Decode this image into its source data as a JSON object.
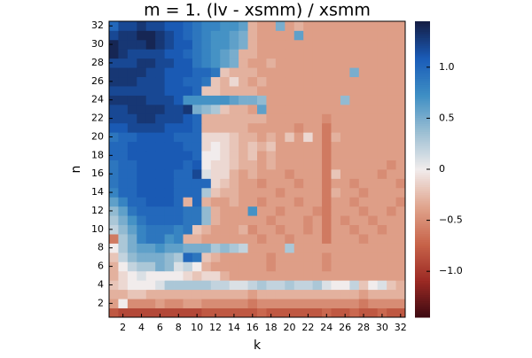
{
  "chart_data": {
    "type": "heatmap",
    "title": "m = 1. (lv - xsmm) / xsmm",
    "x_label": "k",
    "y_label": "n",
    "x": [
      1,
      2,
      3,
      4,
      5,
      6,
      7,
      8,
      9,
      10,
      11,
      12,
      13,
      14,
      15,
      16,
      17,
      18,
      19,
      20,
      21,
      22,
      23,
      24,
      25,
      26,
      27,
      28,
      29,
      30,
      31,
      32
    ],
    "y": [
      1,
      2,
      3,
      4,
      5,
      6,
      7,
      8,
      9,
      10,
      11,
      12,
      13,
      14,
      15,
      16,
      17,
      18,
      19,
      20,
      21,
      22,
      23,
      24,
      25,
      26,
      27,
      28,
      29,
      30,
      31,
      32
    ],
    "xlim": [
      0.5,
      32.5
    ],
    "ylim": [
      0.5,
      32.5
    ],
    "xticks": [
      2,
      4,
      6,
      8,
      10,
      12,
      14,
      16,
      18,
      20,
      22,
      24,
      26,
      28,
      30,
      32
    ],
    "yticks": [
      2,
      4,
      6,
      8,
      10,
      12,
      14,
      16,
      18,
      20,
      22,
      24,
      26,
      28,
      30,
      32
    ],
    "clim": [
      -1.45,
      1.45
    ],
    "cticks": [
      {
        "value": -1,
        "label": "−1.0"
      },
      {
        "value": -0.5,
        "label": "−0.5"
      },
      0,
      0.5,
      {
        "value": 1,
        "label": "1.0"
      }
    ],
    "colormap": [
      "#3c0912",
      "#9c2a24",
      "#c8644a",
      "#e0a58e",
      "#f1ecec",
      "#9cbfd3",
      "#3f8fc4",
      "#1a5cb8",
      "#151d44"
    ],
    "z": [
      [
        -0.8,
        -0.9,
        -0.9,
        -0.9,
        -0.9,
        -0.9,
        -0.9,
        -0.9,
        -0.9,
        -0.9,
        -0.8,
        -0.8,
        -0.8,
        -0.8,
        -0.8,
        -0.8,
        -0.7,
        -0.8,
        -0.8,
        -0.8,
        -0.8,
        -0.8,
        -0.8,
        -0.7,
        -0.8,
        -0.8,
        -0.7,
        -0.8,
        -0.8,
        -0.7,
        -0.8,
        -0.8
      ],
      [
        -0.4,
        0.0,
        -0.5,
        -0.5,
        -0.5,
        -0.4,
        -0.5,
        -0.5,
        -0.4,
        -0.4,
        -0.5,
        -0.5,
        -0.5,
        -0.5,
        -0.5,
        -0.6,
        -0.5,
        -0.5,
        -0.5,
        -0.5,
        -0.5,
        -0.5,
        -0.5,
        -0.5,
        -0.5,
        -0.5,
        -0.5,
        -0.6,
        -0.5,
        -0.5,
        -0.5,
        -0.5
      ],
      [
        -0.3,
        -0.3,
        -0.2,
        -0.2,
        -0.3,
        -0.3,
        -0.3,
        -0.3,
        -0.3,
        -0.3,
        -0.3,
        -0.3,
        -0.3,
        -0.3,
        -0.3,
        -0.4,
        -0.3,
        -0.3,
        -0.3,
        -0.3,
        -0.3,
        -0.3,
        -0.3,
        -0.3,
        -0.3,
        -0.3,
        -0.3,
        -0.4,
        -0.3,
        -0.3,
        -0.3,
        -0.3
      ],
      [
        -0.2,
        -0.1,
        0.0,
        0.0,
        0.0,
        0.1,
        0.3,
        0.3,
        0.3,
        0.3,
        0.3,
        0.2,
        0.2,
        0.1,
        0.1,
        0.2,
        0.3,
        0.2,
        0.2,
        0.3,
        0.2,
        0.2,
        0.3,
        0.1,
        0.0,
        0.0,
        0.2,
        -0.2,
        0.0,
        0.1,
        -0.2,
        -0.3
      ],
      [
        -0.3,
        -0.1,
        0.0,
        0.1,
        0.0,
        0.0,
        0.0,
        0.0,
        -0.1,
        -0.2,
        -0.1,
        -0.1,
        -0.3,
        -0.4,
        -0.4,
        -0.4,
        -0.4,
        -0.4,
        -0.4,
        -0.4,
        -0.4,
        -0.4,
        -0.4,
        -0.4,
        -0.4,
        -0.4,
        -0.4,
        -0.4,
        -0.4,
        -0.4,
        -0.4,
        -0.4
      ],
      [
        -0.3,
        0.0,
        0.2,
        0.3,
        0.3,
        0.5,
        0.4,
        0.1,
        0.2,
        0.0,
        -0.3,
        -0.4,
        -0.4,
        -0.4,
        -0.4,
        -0.4,
        -0.4,
        -0.5,
        -0.4,
        -0.4,
        -0.4,
        -0.4,
        -0.4,
        -0.5,
        -0.4,
        -0.4,
        -0.4,
        -0.4,
        -0.4,
        -0.4,
        -0.4,
        -0.4
      ],
      [
        -0.2,
        0.2,
        0.4,
        0.5,
        0.5,
        0.5,
        0.4,
        0.3,
        1.0,
        0.9,
        -0.2,
        -0.3,
        -0.4,
        -0.4,
        -0.4,
        -0.4,
        -0.4,
        -0.5,
        -0.4,
        -0.4,
        -0.4,
        -0.4,
        -0.4,
        -0.5,
        -0.4,
        -0.4,
        -0.4,
        -0.4,
        -0.4,
        -0.4,
        -0.4,
        -0.4
      ],
      [
        0.0,
        0.3,
        0.5,
        0.6,
        0.6,
        0.7,
        0.6,
        0.6,
        0.5,
        0.5,
        0.5,
        0.3,
        0.4,
        0.3,
        0.2,
        -0.4,
        -0.4,
        -0.4,
        -0.4,
        0.3,
        -0.4,
        -0.4,
        -0.4,
        -0.4,
        -0.4,
        -0.4,
        -0.4,
        -0.4,
        -0.4,
        -0.4,
        -0.4,
        -0.4
      ],
      [
        -0.6,
        0.3,
        0.5,
        0.8,
        0.9,
        0.9,
        0.7,
        0.8,
        -0.3,
        -0.3,
        -0.4,
        -0.4,
        -0.4,
        -0.4,
        -0.4,
        -0.4,
        -0.5,
        -0.4,
        -0.4,
        -0.5,
        -0.4,
        -0.4,
        -0.4,
        -0.6,
        -0.4,
        -0.4,
        -0.4,
        -0.5,
        -0.4,
        -0.4,
        -0.4,
        -0.4
      ],
      [
        0.2,
        0.4,
        0.6,
        0.8,
        0.9,
        0.9,
        0.9,
        0.8,
        0.9,
        -0.2,
        -0.3,
        -0.4,
        -0.4,
        -0.4,
        -0.3,
        -0.5,
        -0.4,
        -0.4,
        -0.5,
        -0.4,
        -0.4,
        -0.5,
        -0.4,
        -0.6,
        -0.4,
        -0.4,
        -0.5,
        -0.4,
        -0.4,
        -0.5,
        -0.4,
        -0.4
      ],
      [
        0.3,
        0.5,
        0.7,
        0.9,
        1.0,
        1.0,
        1.0,
        1.0,
        0.9,
        0.9,
        0.4,
        -0.3,
        -0.4,
        -0.4,
        -0.4,
        -0.4,
        -0.4,
        -0.5,
        -0.4,
        -0.4,
        -0.4,
        -0.5,
        -0.4,
        -0.6,
        -0.4,
        -0.5,
        -0.4,
        -0.4,
        -0.5,
        -0.4,
        -0.4,
        -0.4
      ],
      [
        0.4,
        0.6,
        0.9,
        1.0,
        1.0,
        1.0,
        1.0,
        1.0,
        0.9,
        0.9,
        0.4,
        -0.3,
        -0.4,
        -0.4,
        -0.4,
        0.7,
        -0.4,
        -0.4,
        -0.5,
        -0.4,
        -0.4,
        -0.4,
        -0.5,
        -0.6,
        -0.4,
        -0.4,
        -0.4,
        -0.5,
        -0.4,
        -0.4,
        -0.5,
        -0.4
      ],
      [
        0.6,
        0.8,
        1.0,
        1.0,
        1.1,
        1.1,
        1.1,
        1.0,
        -0.3,
        1.0,
        -0.3,
        -0.4,
        -0.4,
        -0.3,
        -0.4,
        -0.4,
        -0.5,
        -0.4,
        -0.4,
        -0.4,
        -0.5,
        -0.4,
        -0.4,
        -0.6,
        -0.4,
        -0.4,
        -0.5,
        -0.4,
        -0.4,
        -0.4,
        -0.4,
        -0.5
      ],
      [
        0.8,
        1.0,
        1.0,
        1.1,
        1.1,
        1.1,
        1.1,
        1.0,
        1.0,
        1.0,
        0.3,
        -0.2,
        -0.3,
        -0.3,
        -0.4,
        -0.4,
        -0.4,
        -0.4,
        -0.5,
        -0.4,
        -0.4,
        -0.4,
        -0.4,
        -0.6,
        -0.3,
        -0.4,
        -0.4,
        -0.5,
        -0.4,
        -0.4,
        -0.4,
        -0.4
      ],
      [
        0.9,
        1.0,
        1.0,
        1.1,
        1.1,
        1.1,
        1.1,
        1.0,
        1.0,
        1.0,
        1.0,
        -0.1,
        -0.2,
        -0.3,
        -0.4,
        -0.4,
        -0.5,
        -0.4,
        -0.4,
        -0.4,
        -0.5,
        -0.4,
        -0.4,
        -0.6,
        -0.4,
        -0.4,
        -0.5,
        -0.4,
        -0.4,
        -0.4,
        -0.4,
        -0.5
      ],
      [
        0.9,
        1.0,
        1.0,
        1.1,
        1.1,
        1.1,
        1.1,
        1.0,
        1.0,
        1.2,
        0.1,
        -0.1,
        -0.1,
        -0.3,
        -0.4,
        -0.3,
        -0.4,
        -0.4,
        -0.4,
        -0.5,
        -0.4,
        -0.4,
        -0.4,
        -0.6,
        -0.2,
        -0.4,
        -0.4,
        -0.4,
        -0.4,
        -0.5,
        -0.4,
        -0.4
      ],
      [
        0.9,
        1.0,
        1.0,
        1.1,
        1.1,
        1.1,
        1.1,
        1.1,
        1.0,
        1.1,
        0.0,
        -0.1,
        -0.1,
        -0.2,
        -0.3,
        -0.3,
        -0.4,
        -0.3,
        -0.4,
        -0.4,
        -0.4,
        -0.4,
        -0.4,
        -0.6,
        -0.4,
        -0.4,
        -0.4,
        -0.4,
        -0.4,
        -0.4,
        -0.5,
        -0.4
      ],
      [
        1.0,
        1.0,
        1.1,
        1.1,
        1.1,
        1.1,
        1.1,
        1.1,
        1.1,
        1.0,
        0.0,
        0.0,
        -0.1,
        -0.2,
        -0.3,
        -0.2,
        -0.4,
        -0.3,
        -0.4,
        -0.4,
        -0.4,
        -0.4,
        -0.4,
        -0.6,
        -0.4,
        -0.4,
        -0.4,
        -0.4,
        -0.4,
        -0.4,
        -0.4,
        -0.4
      ],
      [
        1.0,
        1.0,
        1.1,
        1.1,
        1.1,
        1.1,
        1.1,
        1.1,
        1.0,
        1.0,
        -0.1,
        0.0,
        -0.1,
        -0.2,
        -0.3,
        -0.2,
        -0.3,
        -0.2,
        -0.4,
        -0.4,
        -0.4,
        -0.4,
        -0.4,
        -0.6,
        -0.4,
        -0.4,
        -0.4,
        -0.4,
        -0.4,
        -0.4,
        -0.4,
        -0.4
      ],
      [
        0.9,
        1.0,
        1.0,
        1.1,
        1.1,
        1.1,
        1.1,
        1.0,
        1.0,
        1.0,
        -0.1,
        -0.1,
        -0.1,
        -0.2,
        -0.3,
        -0.3,
        -0.4,
        -0.3,
        -0.4,
        -0.2,
        -0.4,
        -0.1,
        -0.4,
        -0.6,
        -0.3,
        -0.4,
        -0.4,
        -0.4,
        -0.4,
        -0.4,
        -0.4,
        -0.4
      ],
      [
        1.1,
        1.1,
        1.2,
        1.2,
        1.2,
        1.2,
        1.1,
        1.1,
        1.1,
        1.0,
        -0.3,
        -0.3,
        -0.3,
        -0.3,
        -0.3,
        -0.4,
        -0.4,
        -0.4,
        -0.4,
        -0.4,
        -0.5,
        -0.4,
        -0.4,
        -0.6,
        -0.4,
        -0.4,
        -0.4,
        -0.4,
        -0.4,
        -0.4,
        -0.4,
        -0.4
      ],
      [
        1.2,
        1.2,
        1.2,
        1.3,
        1.3,
        1.2,
        1.2,
        1.2,
        1.1,
        1.0,
        -0.3,
        -0.3,
        -0.3,
        -0.3,
        -0.3,
        -0.3,
        -0.3,
        -0.4,
        -0.4,
        -0.4,
        -0.4,
        -0.4,
        -0.4,
        -0.5,
        -0.4,
        -0.4,
        -0.4,
        -0.4,
        -0.4,
        -0.4,
        -0.4,
        -0.4
      ],
      [
        1.2,
        1.2,
        1.3,
        1.3,
        1.3,
        1.3,
        1.2,
        1.2,
        1.3,
        0.5,
        0.4,
        0.3,
        -0.2,
        -0.3,
        -0.3,
        -0.4,
        0.6,
        -0.4,
        -0.4,
        -0.4,
        -0.4,
        -0.4,
        -0.4,
        -0.4,
        -0.4,
        -0.4,
        -0.4,
        -0.4,
        -0.4,
        -0.4,
        -0.4,
        -0.4
      ],
      [
        1.3,
        1.3,
        1.3,
        1.3,
        1.2,
        1.2,
        1.2,
        1.1,
        0.7,
        0.7,
        0.7,
        0.7,
        0.7,
        0.6,
        0.5,
        0.5,
        0.4,
        -0.4,
        -0.4,
        -0.4,
        -0.4,
        -0.4,
        -0.4,
        -0.4,
        -0.4,
        0.4,
        -0.4,
        -0.4,
        -0.4,
        -0.4,
        -0.4,
        -0.4
      ],
      [
        1.2,
        1.2,
        1.2,
        1.2,
        1.2,
        1.2,
        1.1,
        1.1,
        1.1,
        1.0,
        -0.2,
        -0.2,
        -0.3,
        -0.3,
        -0.3,
        -0.3,
        -0.4,
        -0.4,
        -0.4,
        -0.4,
        -0.4,
        -0.4,
        -0.4,
        -0.4,
        -0.4,
        -0.4,
        -0.4,
        -0.4,
        -0.4,
        -0.4,
        -0.4,
        -0.4
      ],
      [
        1.3,
        1.3,
        1.3,
        1.2,
        1.2,
        1.2,
        1.1,
        1.1,
        1.0,
        1.0,
        0.9,
        -0.2,
        -0.3,
        -0.1,
        -0.3,
        -0.4,
        -0.3,
        -0.4,
        -0.4,
        -0.4,
        -0.4,
        -0.4,
        -0.4,
        -0.4,
        -0.4,
        -0.4,
        -0.4,
        -0.4,
        -0.4,
        -0.4,
        -0.4,
        -0.4
      ],
      [
        1.3,
        1.3,
        1.3,
        1.3,
        1.2,
        1.2,
        1.1,
        1.1,
        1.1,
        1.0,
        1.0,
        0.9,
        -0.2,
        -0.3,
        -0.3,
        -0.3,
        -0.4,
        -0.4,
        -0.4,
        -0.4,
        -0.4,
        -0.4,
        -0.4,
        -0.4,
        -0.4,
        -0.4,
        0.5,
        -0.4,
        -0.4,
        -0.4,
        -0.4,
        -0.4
      ],
      [
        1.2,
        1.2,
        1.2,
        1.3,
        1.3,
        1.2,
        1.2,
        1.1,
        1.1,
        0.9,
        0.8,
        0.7,
        0.6,
        0.5,
        -0.3,
        -0.4,
        -0.4,
        -0.3,
        -0.4,
        -0.4,
        -0.4,
        -0.4,
        -0.4,
        -0.4,
        -0.4,
        -0.4,
        -0.4,
        -0.4,
        -0.4,
        -0.4,
        -0.4,
        -0.4
      ],
      [
        1.4,
        1.3,
        1.2,
        1.2,
        1.2,
        1.2,
        1.1,
        1.1,
        1.0,
        0.9,
        0.8,
        0.7,
        0.6,
        0.5,
        -0.3,
        -0.3,
        -0.4,
        -0.4,
        -0.4,
        -0.4,
        -0.4,
        -0.4,
        -0.4,
        -0.4,
        -0.4,
        -0.4,
        -0.4,
        -0.4,
        -0.4,
        -0.4,
        -0.4,
        -0.4
      ],
      [
        1.4,
        1.3,
        1.3,
        1.3,
        1.4,
        1.3,
        1.2,
        1.1,
        1.1,
        0.9,
        0.8,
        0.7,
        0.7,
        0.6,
        0.5,
        -0.3,
        -0.4,
        -0.4,
        -0.4,
        -0.4,
        -0.4,
        -0.4,
        -0.4,
        -0.4,
        -0.4,
        -0.4,
        -0.4,
        -0.4,
        -0.4,
        -0.4,
        -0.4,
        -0.4
      ],
      [
        1.2,
        1.3,
        1.3,
        1.4,
        1.4,
        1.3,
        1.2,
        1.1,
        1.0,
        0.9,
        0.8,
        0.7,
        0.7,
        0.6,
        0.5,
        -0.3,
        -0.4,
        -0.4,
        -0.4,
        -0.4,
        0.6,
        -0.4,
        -0.4,
        -0.4,
        -0.4,
        -0.4,
        -0.4,
        -0.4,
        -0.4,
        -0.4,
        -0.4,
        -0.4
      ],
      [
        1.0,
        1.2,
        1.2,
        1.3,
        1.2,
        1.2,
        1.1,
        1.1,
        1.0,
        0.9,
        0.8,
        0.8,
        0.7,
        0.7,
        0.6,
        -0.3,
        -0.4,
        -0.4,
        0.5,
        -0.4,
        -0.3,
        -0.4,
        -0.4,
        -0.4,
        -0.4,
        -0.4,
        -0.4,
        -0.4,
        -0.4,
        -0.4,
        -0.4,
        -0.4
      ]
    ]
  }
}
